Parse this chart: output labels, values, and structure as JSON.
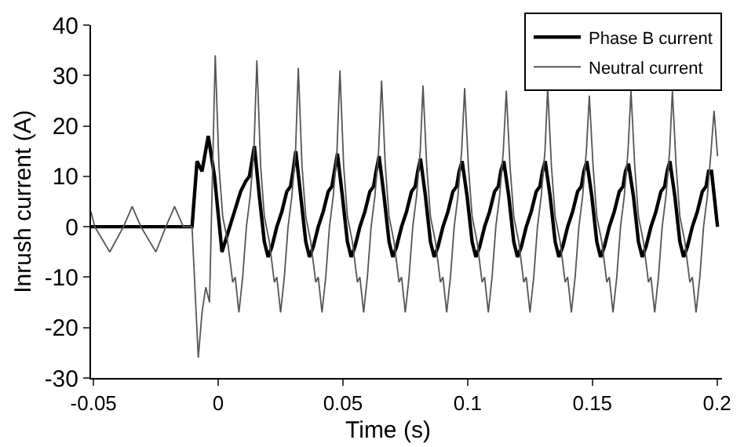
{
  "chart_data": {
    "type": "line",
    "xlabel": "Time (s)",
    "ylabel": "Inrush current (A)",
    "xlim": [
      -0.051,
      0.202
    ],
    "ylim": [
      -30,
      40
    ],
    "xticks": [
      -0.05,
      0,
      0.05,
      0.1,
      0.15,
      0.2
    ],
    "yticks": [
      -30,
      -20,
      -10,
      0,
      10,
      20,
      30,
      40
    ],
    "grid": false,
    "legend": "top right",
    "marker": "none",
    "line_style": "solid",
    "series": [
      {
        "name": "Phase B current",
        "color": "#000000",
        "x": [
          -0.051,
          -0.0105,
          -0.0085,
          -0.0065,
          -0.004,
          -0.0015,
          0.0015,
          0.004,
          0.0065,
          0.009,
          0.011,
          0.0125,
          0.0145,
          0.0165,
          0.0185,
          0.02,
          0.0215,
          0.0235,
          0.0255,
          0.0275,
          0.029,
          0.03,
          0.0311,
          0.0331,
          0.0351,
          0.0366,
          0.0381,
          0.0401,
          0.0421,
          0.0441,
          0.0456,
          0.0466,
          0.0478,
          0.0498,
          0.0518,
          0.0533,
          0.0548,
          0.0568,
          0.0588,
          0.0608,
          0.0623,
          0.0633,
          0.0645,
          0.0665,
          0.0685,
          0.07,
          0.0715,
          0.0735,
          0.0755,
          0.0775,
          0.079,
          0.08,
          0.0811,
          0.0831,
          0.0851,
          0.0866,
          0.0881,
          0.0901,
          0.0921,
          0.0941,
          0.0956,
          0.0966,
          0.0978,
          0.0998,
          0.1018,
          0.1033,
          0.1048,
          0.1068,
          0.1088,
          0.1108,
          0.1123,
          0.1133,
          0.1145,
          0.1165,
          0.1185,
          0.12,
          0.1215,
          0.1235,
          0.1255,
          0.1275,
          0.129,
          0.13,
          0.1311,
          0.1331,
          0.1351,
          0.1366,
          0.1381,
          0.1401,
          0.1421,
          0.1441,
          0.1456,
          0.1466,
          0.1478,
          0.1498,
          0.1518,
          0.1533,
          0.1548,
          0.1568,
          0.1588,
          0.1608,
          0.1623,
          0.1633,
          0.1645,
          0.1665,
          0.1685,
          0.17,
          0.1715,
          0.1735,
          0.1755,
          0.1775,
          0.179,
          0.18,
          0.1811,
          0.1831,
          0.1851,
          0.1866,
          0.1881,
          0.1901,
          0.1921,
          0.1941,
          0.1956,
          0.1966,
          0.1978,
          0.2002
        ],
        "values": [
          0,
          0,
          13,
          11,
          18,
          10,
          -5,
          -1,
          3,
          7,
          9,
          10,
          16,
          6,
          -3,
          -6,
          -4,
          0,
          3,
          7,
          8,
          11,
          15,
          6,
          -3,
          -6,
          -4,
          0,
          3,
          7,
          8,
          11,
          14.5,
          6,
          -3,
          -6,
          -4,
          0,
          3,
          7,
          8,
          11,
          14,
          6,
          -3,
          -6,
          -4,
          0,
          3,
          7,
          8,
          11,
          13.5,
          6,
          -3,
          -6,
          -4,
          0,
          3,
          7,
          8,
          11,
          13,
          6,
          -3,
          -6,
          -4,
          0,
          3,
          7,
          8,
          11,
          13,
          6,
          -3,
          -6,
          -4,
          0,
          3,
          7,
          8,
          11,
          13,
          6,
          -3,
          -6,
          -4,
          0,
          3,
          7,
          8,
          11,
          13,
          6,
          -3,
          -6,
          -4,
          0,
          3,
          7,
          8,
          11,
          12.5,
          6,
          -3,
          -6,
          -4,
          0,
          3,
          7,
          8,
          11,
          13,
          6,
          -3,
          -6,
          -4,
          0,
          3,
          7,
          8,
          11,
          11,
          0
        ]
      },
      {
        "name": "Neutral current",
        "color": "#555555",
        "x": [
          -0.051,
          -0.0495,
          -0.0435,
          -0.038,
          -0.0345,
          -0.031,
          -0.025,
          -0.021,
          -0.0175,
          -0.014,
          -0.0105,
          -0.008,
          -0.0065,
          -0.005,
          -0.0035,
          -0.0012,
          0.0003,
          0.0018,
          0.0038,
          0.0058,
          0.0068,
          0.0083,
          0.0098,
          0.0113,
          0.0128,
          0.0143,
          0.0155,
          0.017,
          0.0185,
          0.0205,
          0.0225,
          0.0235,
          0.025,
          0.0265,
          0.028,
          0.0295,
          0.031,
          0.0321,
          0.0336,
          0.0351,
          0.0371,
          0.0391,
          0.0401,
          0.0416,
          0.0431,
          0.0446,
          0.0461,
          0.0476,
          0.0488,
          0.0503,
          0.0518,
          0.0538,
          0.0558,
          0.0568,
          0.0583,
          0.0598,
          0.0613,
          0.0628,
          0.0643,
          0.0655,
          0.067,
          0.0685,
          0.0705,
          0.0725,
          0.0735,
          0.075,
          0.0765,
          0.078,
          0.0795,
          0.081,
          0.0821,
          0.0836,
          0.0851,
          0.0871,
          0.0891,
          0.0901,
          0.0916,
          0.0931,
          0.0946,
          0.0961,
          0.0976,
          0.0988,
          0.1003,
          0.1018,
          0.1038,
          0.1058,
          0.1068,
          0.1083,
          0.1098,
          0.1113,
          0.1128,
          0.1143,
          0.1155,
          0.117,
          0.1185,
          0.1205,
          0.1225,
          0.1235,
          0.125,
          0.1265,
          0.128,
          0.1295,
          0.131,
          0.1321,
          0.1336,
          0.1351,
          0.1371,
          0.1391,
          0.1401,
          0.1416,
          0.1431,
          0.1446,
          0.1461,
          0.1476,
          0.1488,
          0.1503,
          0.1518,
          0.1538,
          0.1558,
          0.1568,
          0.1583,
          0.1598,
          0.1613,
          0.1628,
          0.1643,
          0.1655,
          0.167,
          0.1685,
          0.1705,
          0.1725,
          0.1735,
          0.175,
          0.1765,
          0.178,
          0.1795,
          0.181,
          0.1821,
          0.1836,
          0.1851,
          0.1871,
          0.1891,
          0.1901,
          0.1916,
          0.1931,
          0.1946,
          0.1961,
          0.1976,
          0.1988,
          0.2002
        ],
        "values": [
          3,
          0,
          -5,
          0,
          4,
          0,
          -5,
          0,
          4,
          0,
          0,
          -26,
          -17,
          -12,
          -15,
          34,
          12,
          2,
          -3,
          -11,
          -10,
          -17,
          -10,
          0,
          6,
          15,
          33,
          12,
          2,
          -3,
          -11,
          -10,
          -17,
          -10,
          0,
          6,
          15,
          31.5,
          12,
          2,
          -3,
          -11,
          -10,
          -17,
          -10,
          0,
          6,
          15,
          31,
          12,
          2,
          -3,
          -11,
          -10,
          -17,
          -10,
          0,
          6,
          15,
          29,
          12,
          2,
          -3,
          -11,
          -10,
          -17,
          -10,
          0,
          6,
          15,
          28,
          12,
          2,
          -3,
          -11,
          -10,
          -17,
          -10,
          0,
          6,
          15,
          27.5,
          12,
          2,
          -3,
          -11,
          -10,
          -17,
          -10,
          0,
          6,
          15,
          27,
          12,
          2,
          -3,
          -11,
          -10,
          -17,
          -10,
          0,
          6,
          15,
          27.5,
          12,
          2,
          -3,
          -11,
          -10,
          -17,
          -10,
          0,
          6,
          15,
          26,
          12,
          2,
          -3,
          -11,
          -10,
          -17,
          -10,
          0,
          6,
          15,
          27,
          12,
          2,
          -3,
          -11,
          -10,
          -17,
          -10,
          0,
          6,
          15,
          27,
          12,
          2,
          -3,
          -11,
          -10,
          -17,
          -10,
          0,
          6,
          15,
          23,
          14
        ]
      }
    ]
  }
}
